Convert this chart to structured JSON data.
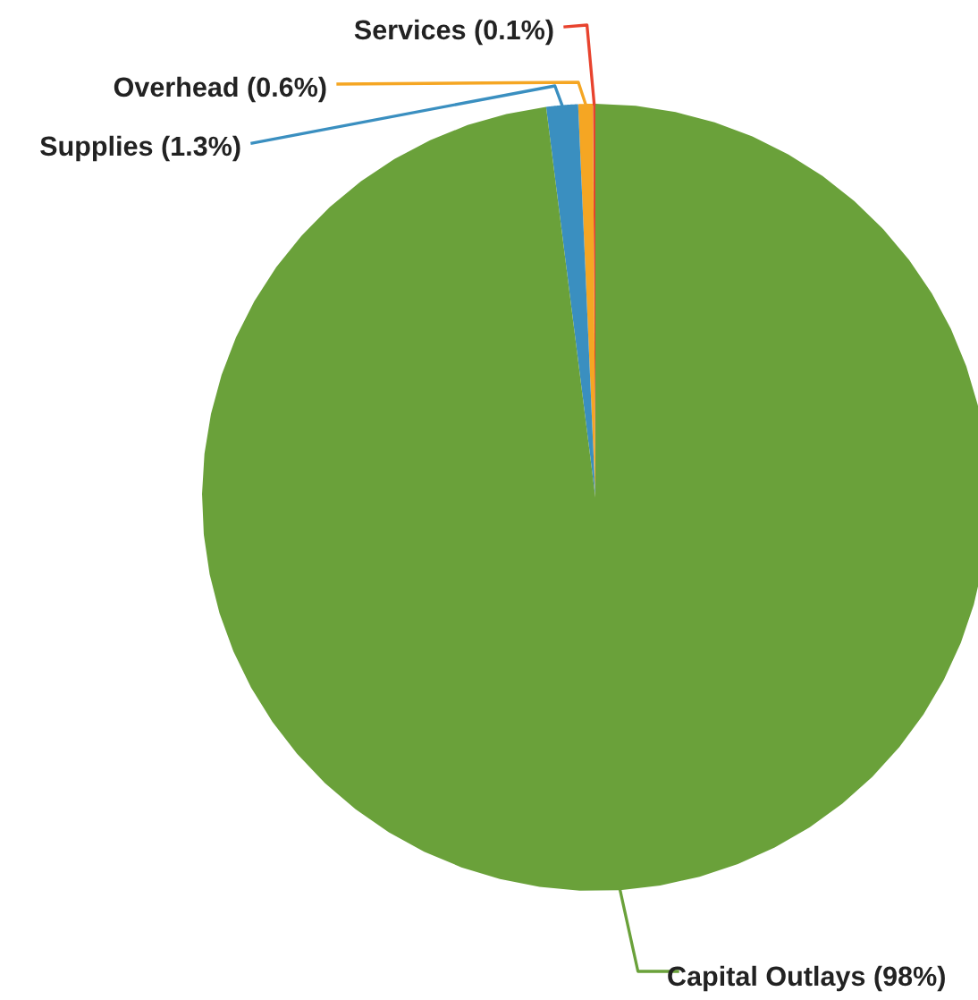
{
  "chart_data": {
    "type": "pie",
    "categories": [
      "Services",
      "Overhead",
      "Supplies",
      "Capital Outlays"
    ],
    "values": [
      0.1,
      0.6,
      1.3,
      98
    ],
    "value_labels": [
      "(0.1%)",
      "(0.6%)",
      "(1.3%)",
      "(98%)"
    ],
    "colors": [
      "#e8432e",
      "#f5a623",
      "#3a8fc0",
      "#6aa13a"
    ]
  }
}
